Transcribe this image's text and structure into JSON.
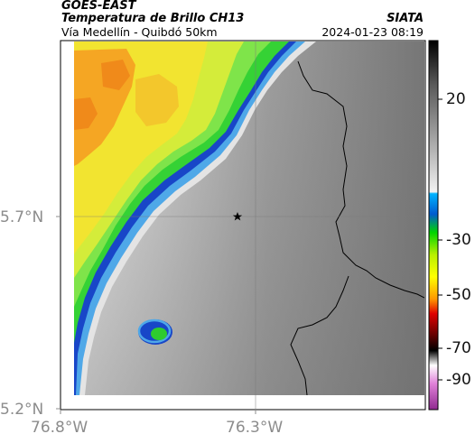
{
  "header": {
    "satellite": "GOES-EAST",
    "product": "Temperatura de Brillo CH13",
    "route": "Vía Medellín - Quibdó 50km",
    "source": "SIATA",
    "datetime": "2024-01-23 08:19"
  },
  "map": {
    "lat_labels": [
      "5.7°N",
      "5.2°N"
    ],
    "lon_labels": [
      "76.8°W",
      "76.3°W"
    ],
    "marker_icon": "star-icon",
    "colors": {
      "warm_gray_light": "#e6e6e6",
      "warm_gray_dark": "#6e6e6e",
      "blue": "#1a6fd1",
      "green": "#33d633",
      "yellow": "#f2e62e",
      "orange": "#f5a623",
      "border": "#000000"
    }
  },
  "colorbar": {
    "labels": [
      "20",
      "-30",
      "-50",
      "-70",
      "-90"
    ]
  }
}
